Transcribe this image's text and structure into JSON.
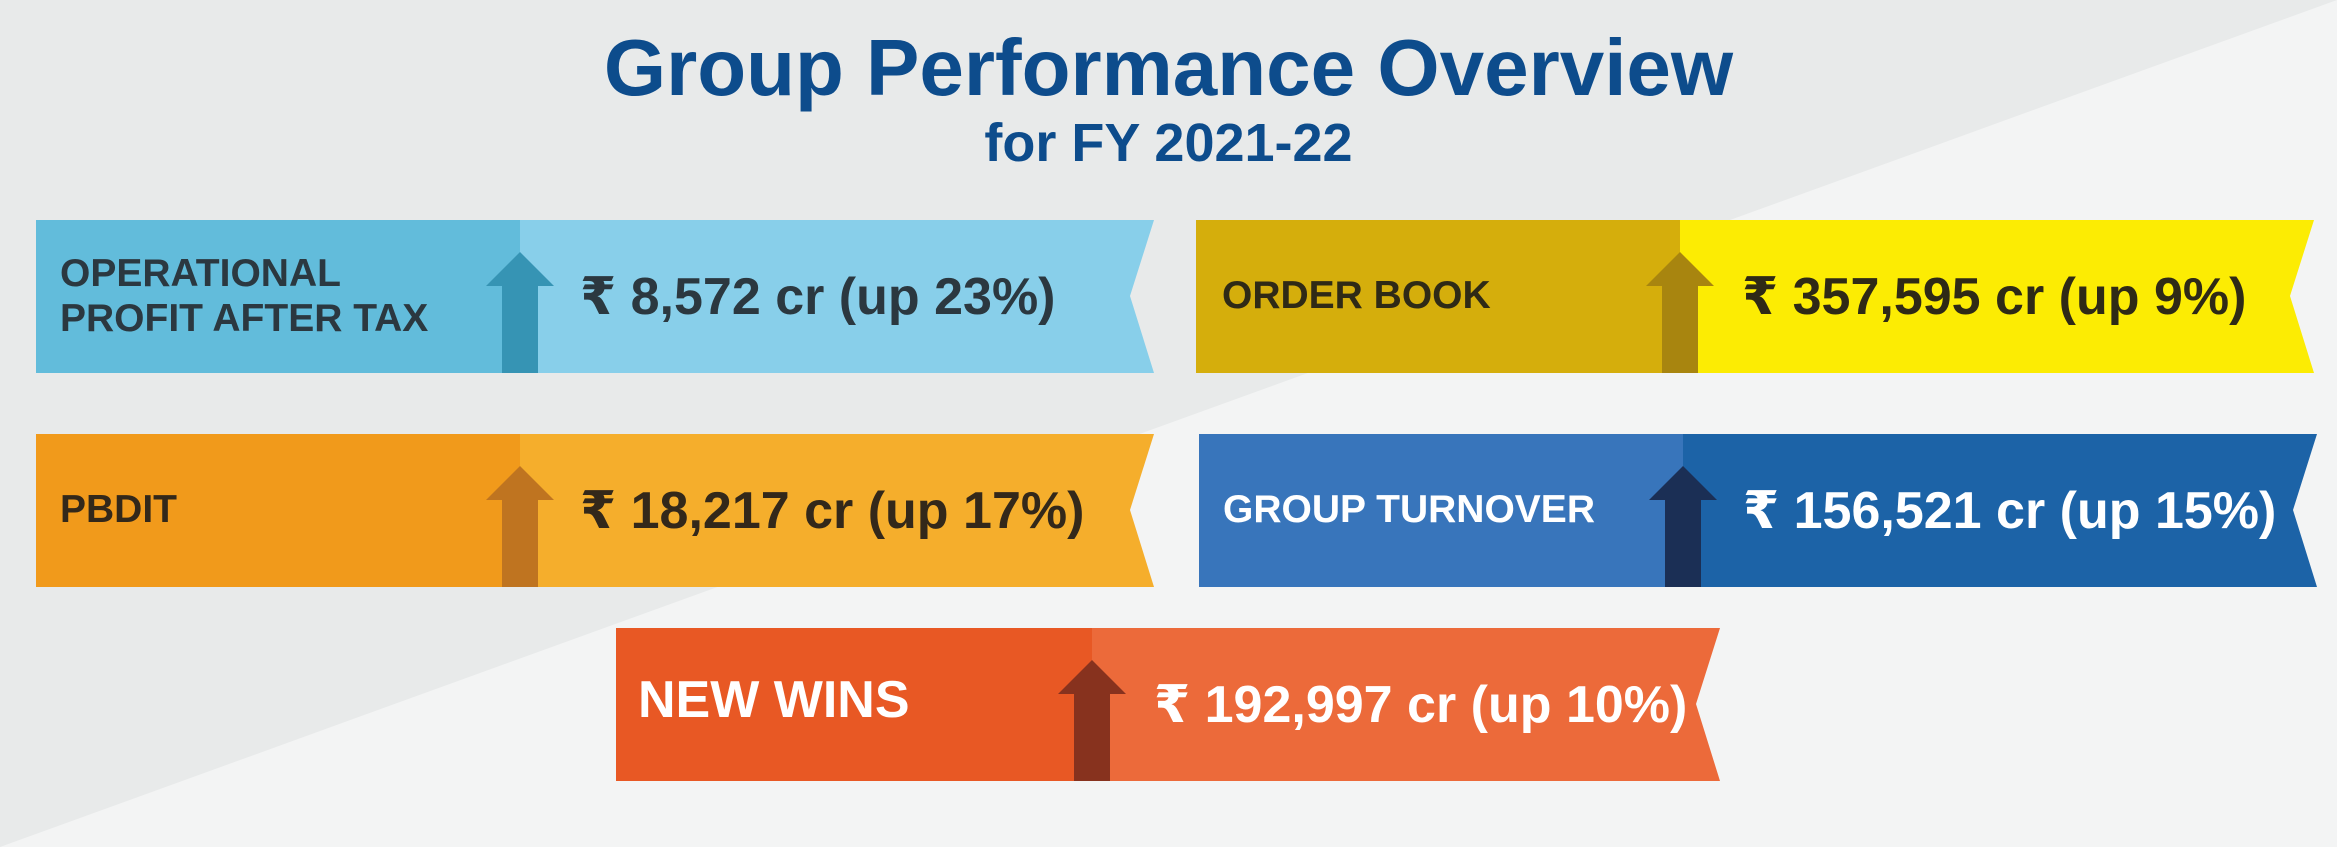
{
  "header": {
    "title": "Group Performance Overview",
    "subtitle": "for FY 2021-22"
  },
  "metrics": [
    {
      "label_line1": "OPERATIONAL",
      "label_line2": "PROFIT AFTER TAX",
      "value": "₹ 8,572 cr (up 23%)",
      "trend": "up",
      "icon": "arrow-up-icon",
      "colors": {
        "left": "#62bcdb",
        "right": "#88cfea",
        "arrow": "#3694b4",
        "label_text": "#2b3840",
        "value_text": "#2b3840"
      }
    },
    {
      "label_line1": "ORDER BOOK",
      "value": "₹ 357,595 cr (up 9%)",
      "trend": "up",
      "icon": "arrow-up-icon",
      "colors": {
        "left": "#d5ae0c",
        "right": "#fcec03",
        "arrow": "#a8850f",
        "label_text": "#2f2a16",
        "value_text": "#2f2a16"
      }
    },
    {
      "label_line1": "PBDIT",
      "value": "₹ 18,217 cr (up 17%)",
      "trend": "up",
      "icon": "arrow-up-icon",
      "colors": {
        "left": "#f19a1b",
        "right": "#f5ae2c",
        "arrow": "#bf7420",
        "label_text": "#33281a",
        "value_text": "#33281a"
      }
    },
    {
      "label_line1": "GROUP TURNOVER",
      "value": "₹ 156,521 cr (up 15%)",
      "trend": "up",
      "icon": "arrow-up-icon",
      "colors": {
        "left": "#3875bb",
        "right": "#1c63a7",
        "arrow": "#1b2f55",
        "label_text": "#ffffff",
        "value_text": "#ffffff"
      }
    },
    {
      "label_line1": "NEW WINS",
      "value": "₹ 192,997 cr (up 10%)",
      "trend": "up",
      "icon": "arrow-up-icon",
      "colors": {
        "left": "#e85824",
        "right": "#ec6a3a",
        "arrow": "#87321e",
        "label_text": "#ffffff",
        "value_text": "#ffffff"
      }
    }
  ]
}
